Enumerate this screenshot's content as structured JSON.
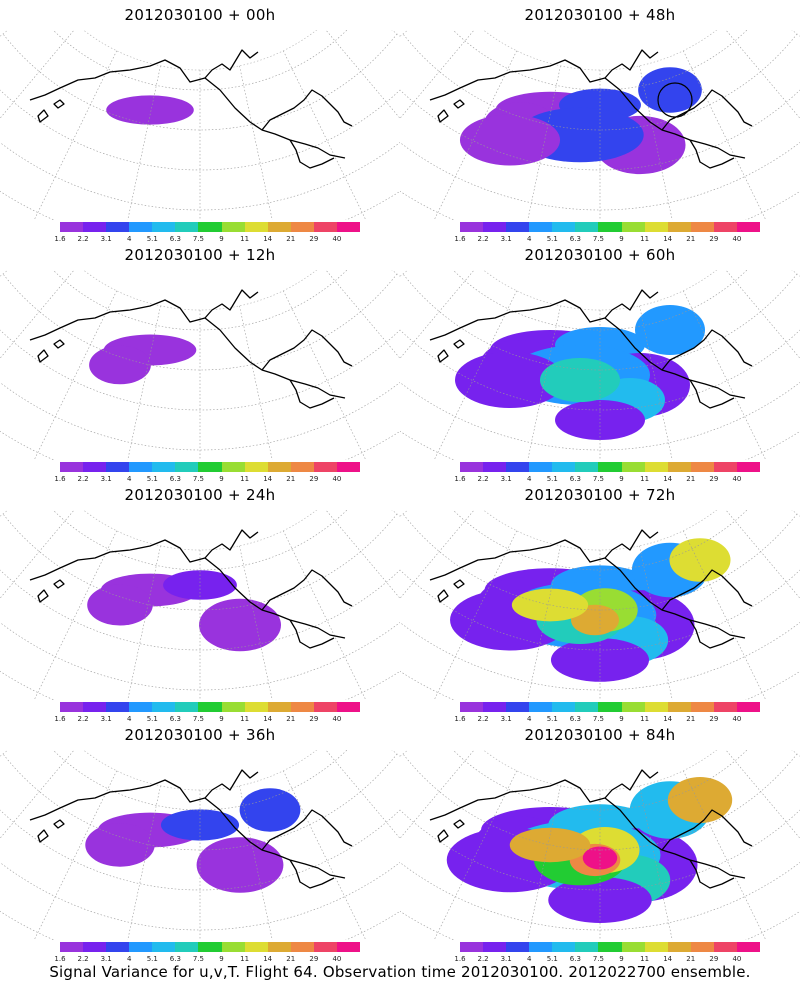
{
  "colorbar": {
    "labels": [
      "1.6",
      "2.2",
      "3.1",
      "4",
      "5.1",
      "6.3",
      "7.5",
      "9",
      "11",
      "14",
      "21",
      "29",
      "40"
    ],
    "colors": [
      "#9933dd",
      "#7722ee",
      "#3344ee",
      "#2299ff",
      "#22bbee",
      "#22ccbb",
      "#22cc33",
      "#99dd33",
      "#dddd33",
      "#ddaa33",
      "#ee8844",
      "#ee4466",
      "#ee1188"
    ]
  },
  "panels": [
    {
      "id": "p00",
      "title": "2012030100 + 00h",
      "level": 0.05
    },
    {
      "id": "p48",
      "title": "2012030100 + 48h",
      "level": 0.35
    },
    {
      "id": "p12",
      "title": "2012030100 + 12h",
      "level": 0.12
    },
    {
      "id": "p60",
      "title": "2012030100 + 60h",
      "level": 0.5
    },
    {
      "id": "p24",
      "title": "2012030100 + 24h",
      "level": 0.2
    },
    {
      "id": "p72",
      "title": "2012030100 + 72h",
      "level": 0.65
    },
    {
      "id": "p36",
      "title": "2012030100 + 36h",
      "level": 0.28
    },
    {
      "id": "p84",
      "title": "2012030100 + 84h",
      "level": 0.75
    }
  ],
  "caption": "Signal Variance for u,v,T. Flight 64. Observation time 2012030100. 2012022700 ensemble."
}
